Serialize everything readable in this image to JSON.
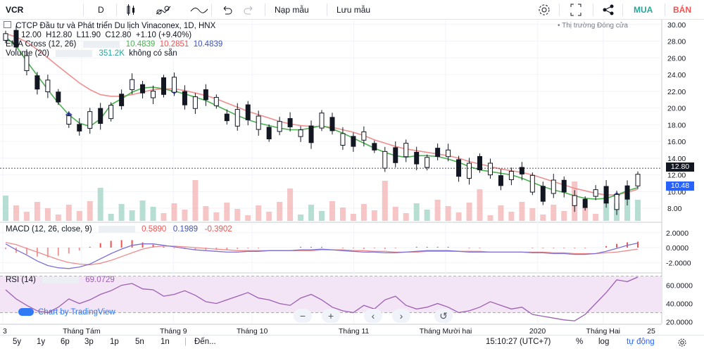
{
  "toolbar": {
    "symbol": "VCR",
    "interval": "D",
    "undo_icon": "undo-icon",
    "redo_icon": "redo-icon",
    "template_label": "Nạp mẫu",
    "save_label": "Lưu mẫu",
    "buy_label": "MUA",
    "sell_label": "BÁN"
  },
  "legend": {
    "title": "CTCP Đầu tư và Phát triển Du lịch Vinaconex, 1D, HNX",
    "open": "12.00",
    "high": "H12.80",
    "low": "L11.90",
    "close": "C12.80",
    "change": "+1.10 (+9.40%)",
    "market_status": "Thị trường Đóng cửa",
    "ema_label": "EMA Cross (12, 26)",
    "ema_v1": "10.4839",
    "ema_v2": "10.2851",
    "ema_v3": "10.4839",
    "volume_label": "Volume (20)",
    "volume_value": "351.2K",
    "volume_note": "không có sẵn",
    "macd_label": "MACD (12, 26, close, 9)",
    "macd_v1": "0.5890",
    "macd_v2": "0.1989",
    "macd_v3": "-0.3902",
    "rsi_label": "RSI (14)",
    "rsi_value": "69.0729",
    "watermark": "Chart by TradingView"
  },
  "bottom": {
    "ranges": [
      "5y",
      "1y",
      "6p",
      "3p",
      "1p",
      "5n",
      "1n"
    ],
    "goto": "Đến...",
    "time": "15:10:27 (UTC+7)",
    "percent": "%",
    "log": "log",
    "auto": "tự động"
  },
  "colors": {
    "up": "#26a69a",
    "down": "#131722",
    "ema_fast": "#4caf50",
    "ema_slow": "#ef8f8f",
    "macd_line": "#7e6fd6",
    "signal_line": "#f08b8b",
    "rsi": "#9c5fb5",
    "rsi_band": "#f3e5f5"
  },
  "chart_data": [
    {
      "type": "candlestick",
      "title": "CTCP Đầu tư và Phát triển Du lịch Vinaconex, 1D, HNX",
      "x_tick_labels": [
        "3",
        "Tháng Tám",
        "Tháng 9",
        "Tháng 10",
        "Tháng 11",
        "Tháng Mười hai",
        "2020",
        "Tháng Hai",
        "25"
      ],
      "y_tick_labels": [
        "30.00",
        "28.00",
        "26.00",
        "24.00",
        "22.00",
        "20.00",
        "18.00",
        "16.00",
        "14.00",
        "12.00",
        "10.00",
        "8.00"
      ],
      "ylim": [
        6.5,
        30.4
      ],
      "last_price_label": "12.80",
      "last_ema_label": "10.48",
      "grid": true,
      "series": [
        {
          "name": "EMA Cross (12, 26)",
          "values": [
            28.5,
            27.4,
            25.6,
            23.9,
            22.2,
            20.6,
            19.2,
            18.2,
            17.8,
            18.7,
            20.4,
            21.1,
            21.9,
            22.4,
            22.5,
            22.3,
            22.0,
            21.7,
            21.3,
            20.9,
            20.3,
            19.7,
            19.1,
            18.6,
            18.2,
            17.9,
            17.6,
            17.4,
            17.4,
            17.6,
            17.9,
            17.5,
            17.0,
            16.4,
            15.8,
            15.2,
            14.7,
            14.3,
            14.1,
            14.3,
            14.3,
            14.2,
            13.9,
            13.5,
            13.0,
            12.6,
            12.4,
            12.2,
            12.0,
            11.6,
            11.1,
            10.6,
            10.2,
            9.9,
            9.5,
            9.2,
            9.1,
            9.2,
            9.6,
            10.1,
            10.48
          ]
        },
        {
          "name": "EMA slow",
          "values": [
            28.9,
            28.5,
            27.9,
            27.0,
            26.0,
            25.0,
            24.0,
            23.0,
            22.2,
            21.6,
            21.4,
            21.4,
            21.6,
            21.9,
            22.2,
            22.3,
            22.3,
            22.1,
            21.8,
            21.5,
            21.1,
            20.6,
            20.1,
            19.6,
            19.2,
            18.8,
            18.4,
            18.1,
            17.9,
            17.8,
            17.8,
            17.7,
            17.4,
            17.1,
            16.7,
            16.2,
            15.8,
            15.4,
            15.1,
            14.9,
            14.7,
            14.5,
            14.3,
            14.0,
            13.6,
            13.3,
            13.0,
            12.7,
            12.5,
            12.3,
            12.0,
            11.6,
            11.2,
            10.8,
            10.4,
            10.1,
            9.8,
            9.6,
            9.6,
            9.9,
            10.29
          ]
        }
      ]
    },
    {
      "type": "bar",
      "name": "Volume (20)",
      "last_value": "351.2K"
    },
    {
      "type": "line",
      "name": "MACD (12, 26, close, 9)",
      "y_tick_labels": [
        "2.0000",
        "0.0000",
        "-2.0000"
      ],
      "ylim": [
        -3.2,
        3.2
      ],
      "series": [
        {
          "name": "MACD",
          "values": [
            0.5,
            -0.3,
            -1.0,
            -1.8,
            -2.4,
            -2.7,
            -2.8,
            -2.6,
            -2.2,
            -1.5,
            -0.8,
            -0.2,
            0.3,
            0.5,
            0.5,
            0.3,
            0.1,
            -0.1,
            -0.3,
            -0.4,
            -0.5,
            -0.6,
            -0.6,
            -0.5,
            -0.5,
            -0.4,
            -0.4,
            -0.4,
            -0.3,
            -0.3,
            -0.2,
            -0.3,
            -0.4,
            -0.5,
            -0.6,
            -0.6,
            -0.7,
            -0.7,
            -0.6,
            -0.5,
            -0.4,
            -0.4,
            -0.4,
            -0.5,
            -0.6,
            -0.6,
            -0.6,
            -0.6,
            -0.6,
            -0.6,
            -0.7,
            -0.7,
            -0.8,
            -0.8,
            -0.9,
            -0.9,
            -0.8,
            -0.5,
            -0.1,
            0.3,
            0.6
          ]
        },
        {
          "name": "Signal",
          "values": [
            0.7,
            0.4,
            -0.1,
            -0.6,
            -1.1,
            -1.6,
            -2.0,
            -2.2,
            -2.3,
            -2.1,
            -1.7,
            -1.2,
            -0.7,
            -0.2,
            0.1,
            0.2,
            0.2,
            0.1,
            0.0,
            -0.1,
            -0.2,
            -0.3,
            -0.4,
            -0.4,
            -0.4,
            -0.4,
            -0.4,
            -0.4,
            -0.4,
            -0.4,
            -0.3,
            -0.3,
            -0.3,
            -0.4,
            -0.4,
            -0.5,
            -0.5,
            -0.6,
            -0.6,
            -0.6,
            -0.5,
            -0.5,
            -0.5,
            -0.5,
            -0.5,
            -0.5,
            -0.6,
            -0.6,
            -0.6,
            -0.6,
            -0.6,
            -0.6,
            -0.7,
            -0.7,
            -0.8,
            -0.8,
            -0.8,
            -0.7,
            -0.6,
            -0.4,
            -0.2
          ]
        }
      ]
    },
    {
      "type": "line",
      "name": "RSI (14)",
      "y_tick_labels": [
        "60.0000",
        "40.0000",
        "20.0000"
      ],
      "ylim": [
        18,
        72
      ],
      "band": [
        30,
        70
      ],
      "series": [
        {
          "name": "RSI",
          "values": [
            55,
            45,
            38,
            32,
            30,
            36,
            45,
            40,
            44,
            50,
            54,
            60,
            62,
            56,
            55,
            48,
            50,
            54,
            49,
            42,
            40,
            44,
            48,
            52,
            46,
            44,
            40,
            38,
            46,
            50,
            44,
            36,
            32,
            30,
            38,
            34,
            44,
            48,
            38,
            34,
            36,
            40,
            36,
            30,
            32,
            36,
            42,
            38,
            34,
            36,
            28,
            26,
            24,
            22,
            21,
            28,
            40,
            52,
            66,
            64,
            69
          ]
        }
      ]
    }
  ]
}
